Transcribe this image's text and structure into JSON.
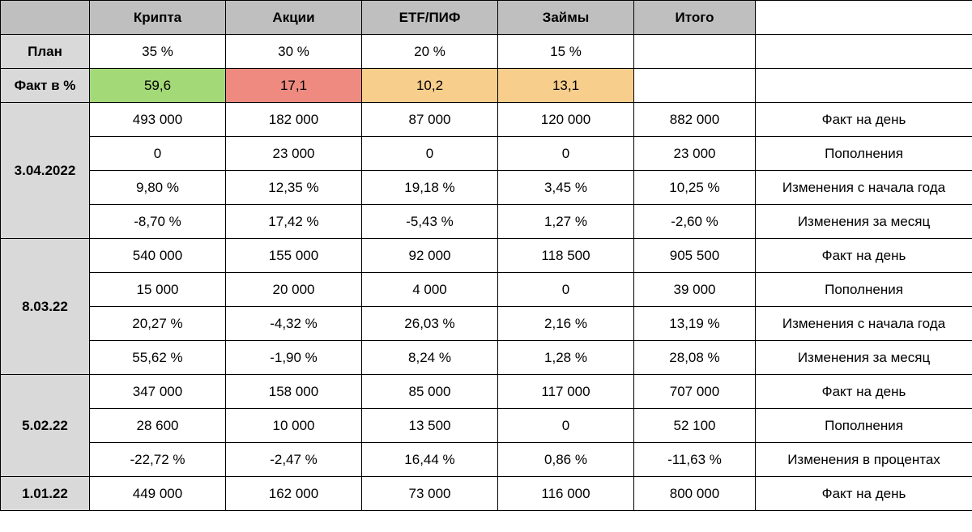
{
  "header": {
    "corner": "",
    "cols": [
      "Крипта",
      "Акции",
      "ETF/ПИФ",
      "Займы",
      "Итого"
    ],
    "lastEmpty": ""
  },
  "plan": {
    "label": "План",
    "vals": [
      "35 %",
      "30 %",
      "20 %",
      "15 %"
    ],
    "totalEmpty": "",
    "lastEmpty": ""
  },
  "fact": {
    "label": "Факт в %",
    "vals": [
      "59,6",
      "17,1",
      "10,2",
      "13,1"
    ],
    "colors": [
      "green",
      "red",
      "orange",
      "orange"
    ],
    "totalEmpty": "",
    "lastEmpty": ""
  },
  "blocks": [
    {
      "date": "3.04.2022",
      "span": 4,
      "rows": [
        {
          "vals": [
            "493 000",
            "182 000",
            "87 000",
            "120 000",
            "882 000"
          ],
          "label": "Факт на день"
        },
        {
          "vals": [
            "0",
            "23 000",
            "0",
            "0",
            "23 000"
          ],
          "label": "Пополнения"
        },
        {
          "vals": [
            "9,80 %",
            "12,35 %",
            "19,18 %",
            "3,45 %",
            "10,25 %"
          ],
          "label": "Изменения с начала года"
        },
        {
          "vals": [
            "-8,70 %",
            "17,42 %",
            "-5,43 %",
            "1,27 %",
            "-2,60 %"
          ],
          "label": "Изменения за месяц"
        }
      ]
    },
    {
      "date": "8.03.22",
      "span": 4,
      "rows": [
        {
          "vals": [
            "540 000",
            "155 000",
            "92 000",
            "118 500",
            "905 500"
          ],
          "label": "Факт на день"
        },
        {
          "vals": [
            "15 000",
            "20 000",
            "4 000",
            "0",
            "39 000"
          ],
          "label": "Пополнения"
        },
        {
          "vals": [
            "20,27 %",
            "-4,32 %",
            "26,03 %",
            "2,16 %",
            "13,19 %"
          ],
          "label": "Изменения с начала года"
        },
        {
          "vals": [
            "55,62 %",
            "-1,90 %",
            "8,24 %",
            "1,28 %",
            "28,08 %"
          ],
          "label": "Изменения за месяц"
        }
      ]
    },
    {
      "date": "5.02.22",
      "span": 3,
      "rows": [
        {
          "vals": [
            "347 000",
            "158 000",
            "85 000",
            "117 000",
            "707 000"
          ],
          "label": "Факт на день"
        },
        {
          "vals": [
            "28 600",
            "10 000",
            "13 500",
            "0",
            "52 100"
          ],
          "label": "Пополнения"
        },
        {
          "vals": [
            "-22,72 %",
            "-2,47 %",
            "16,44 %",
            "0,86 %",
            "-11,63 %"
          ],
          "label": "Изменения в процентах"
        }
      ]
    },
    {
      "date": "1.01.22",
      "span": 1,
      "rows": [
        {
          "vals": [
            "449 000",
            "162 000",
            "73 000",
            "116 000",
            "800 000"
          ],
          "label": "Факт на день"
        }
      ]
    }
  ]
}
